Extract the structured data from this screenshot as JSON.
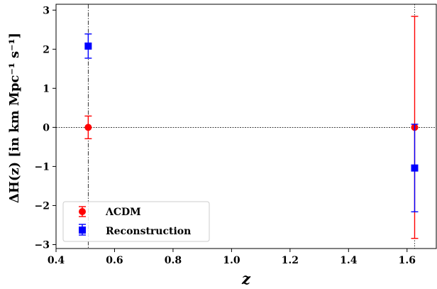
{
  "chart_data": {
    "type": "scatter",
    "xlabel": "z",
    "ylabel": "ΔH(z) [in km Mpc⁻¹ s⁻¹]",
    "xlim": [
      0.4,
      1.7
    ],
    "ylim": [
      -3.1,
      3.15
    ],
    "xticks": [
      "0.4",
      "0.6",
      "0.8",
      "1.0",
      "1.2",
      "1.4",
      "1.6"
    ],
    "yticks": [
      "−3",
      "−2",
      "−1",
      "0",
      "1",
      "2",
      "3"
    ],
    "grid": false,
    "legend_position": "lower-left",
    "reference_lines": {
      "horizontal_y": 0,
      "vertical_x": [
        0.51,
        1.626
      ]
    },
    "series": [
      {
        "name": "ΛCDM",
        "marker": "circle",
        "color": "#ff0000",
        "points": [
          {
            "x": 0.51,
            "y": 0.0,
            "err": 0.29
          },
          {
            "x": 1.626,
            "y": 0.0,
            "err": 2.84
          }
        ]
      },
      {
        "name": "Reconstruction",
        "marker": "square",
        "color": "#0000ff",
        "points": [
          {
            "x": 0.51,
            "y": 2.08,
            "err": 0.31
          },
          {
            "x": 1.626,
            "y": -1.04,
            "err": 1.12
          }
        ]
      }
    ]
  }
}
